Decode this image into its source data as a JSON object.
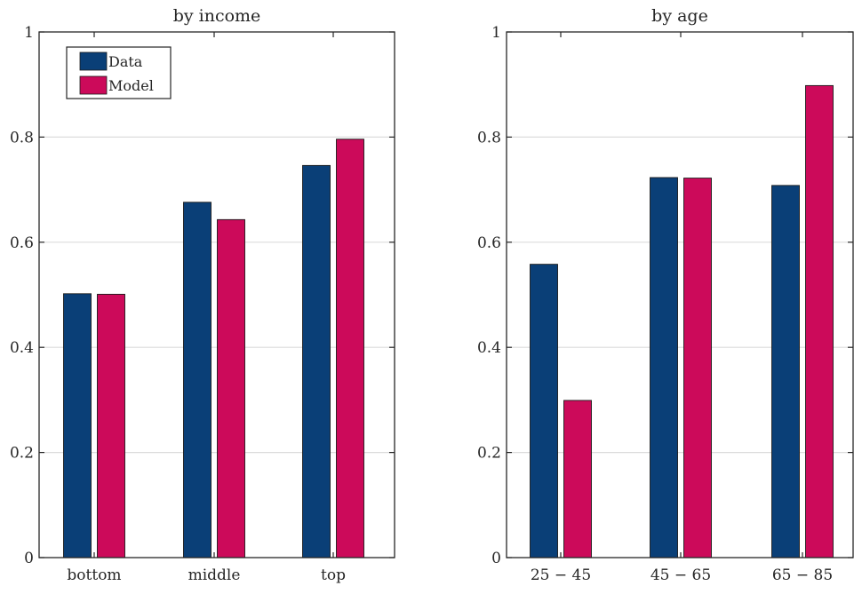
{
  "colors": {
    "data": "#0A3F77",
    "model": "#CC0A5A",
    "grid": "#dcdcdc",
    "axis": "#262626"
  },
  "legend": {
    "placement": "top-left",
    "entries": [
      "Data",
      "Model"
    ]
  },
  "chart_data": [
    {
      "type": "bar",
      "title": "by income",
      "xlabel": "",
      "ylabel": "",
      "ylim": [
        0,
        1
      ],
      "yticks": [
        0,
        0.2,
        0.4,
        0.6,
        0.8,
        1
      ],
      "ytick_labels": [
        "0",
        "0.2",
        "0.4",
        "0.6",
        "0.8",
        "1"
      ],
      "grid": true,
      "categories": [
        "bottom",
        "middle",
        "top"
      ],
      "series": [
        {
          "name": "Data",
          "values": [
            0.502,
            0.676,
            0.746
          ]
        },
        {
          "name": "Model",
          "values": [
            0.501,
            0.643,
            0.796
          ]
        }
      ]
    },
    {
      "type": "bar",
      "title": "by age",
      "xlabel": "",
      "ylabel": "",
      "ylim": [
        0,
        1
      ],
      "yticks": [
        0,
        0.2,
        0.4,
        0.6,
        0.8,
        1
      ],
      "ytick_labels": [
        "0",
        "0.2",
        "0.4",
        "0.6",
        "0.8",
        "1"
      ],
      "grid": true,
      "categories": [
        "25 − 45",
        "45 − 65",
        "65 − 85"
      ],
      "series": [
        {
          "name": "Data",
          "values": [
            0.558,
            0.723,
            0.708
          ]
        },
        {
          "name": "Model",
          "values": [
            0.299,
            0.722,
            0.898
          ]
        }
      ]
    }
  ]
}
